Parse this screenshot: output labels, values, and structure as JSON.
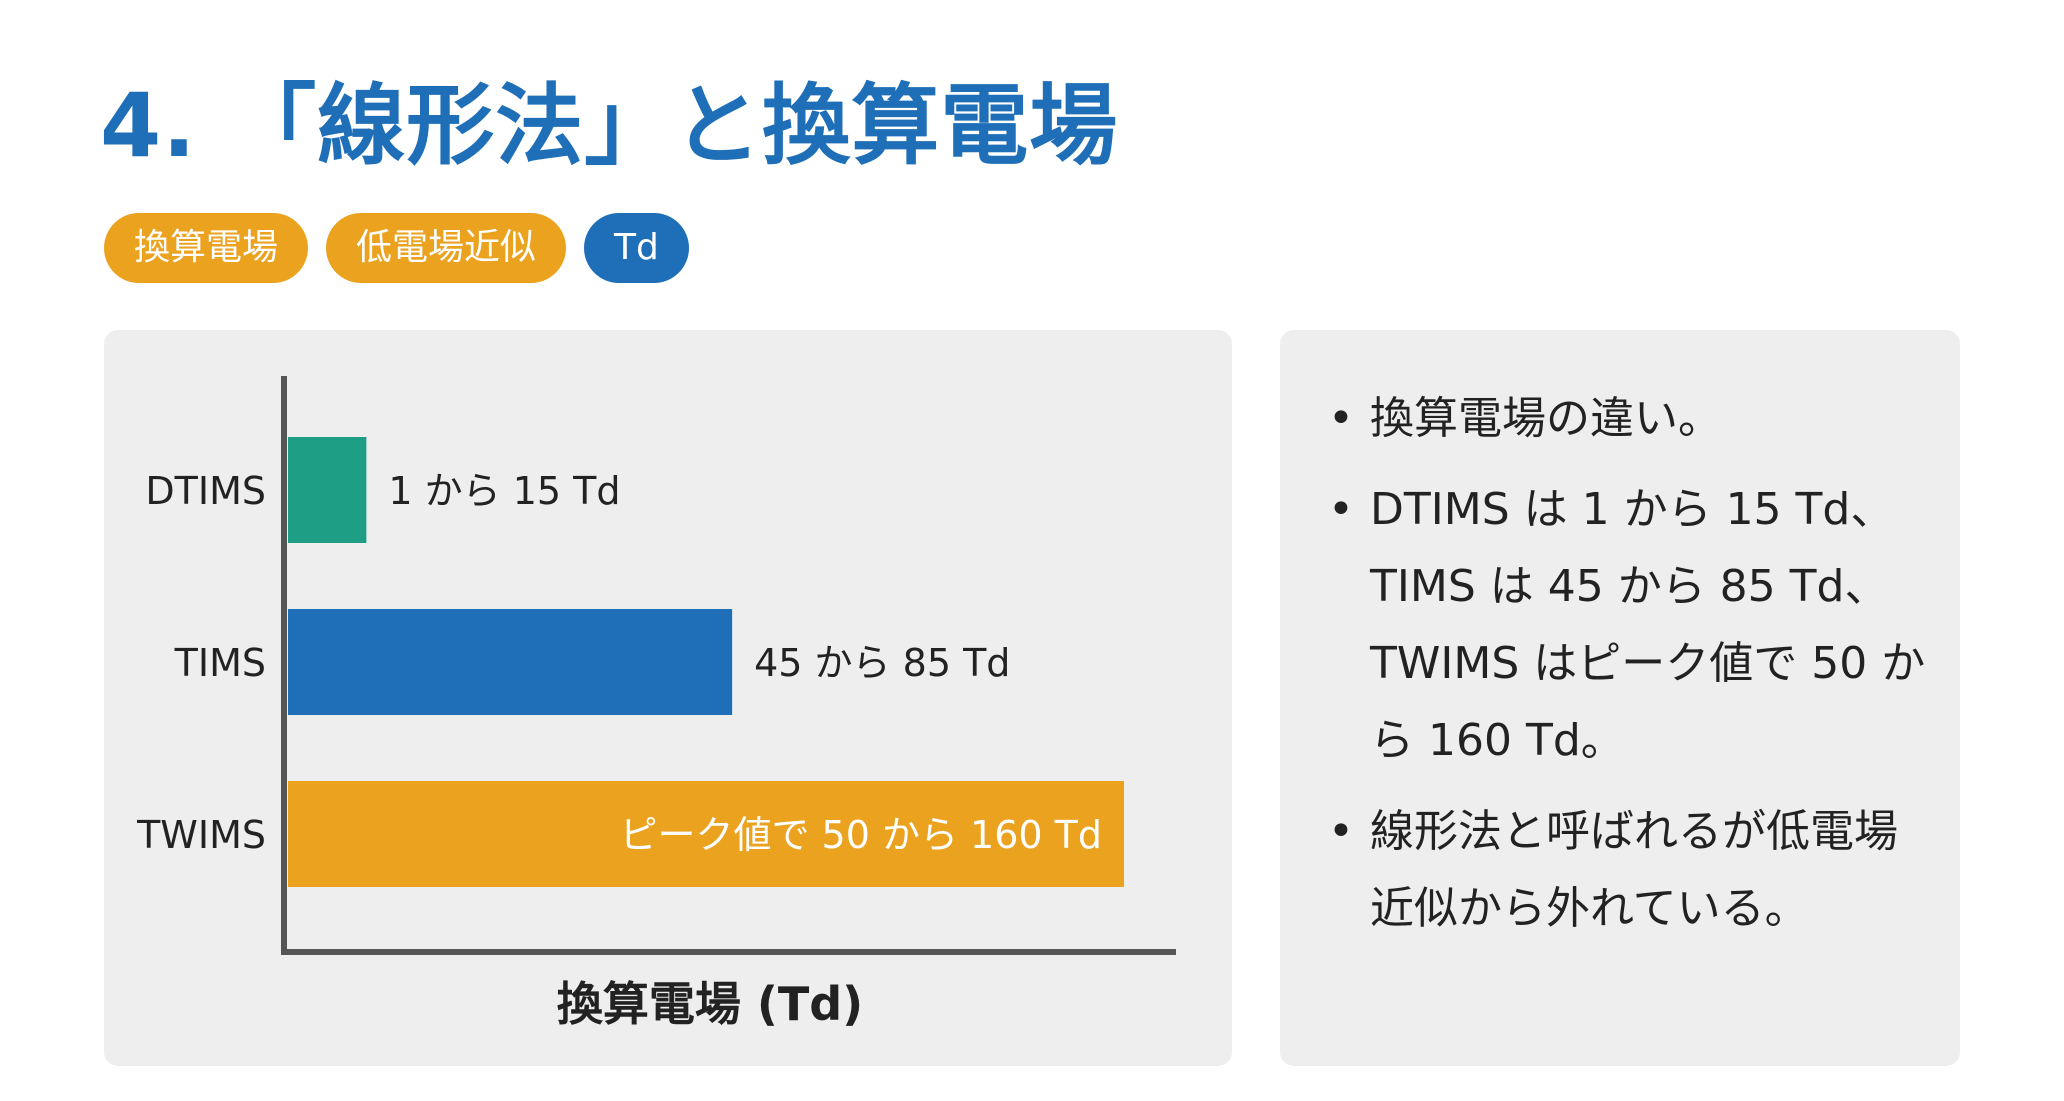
{
  "title": "4. 「線形法」と換算電場",
  "tags": [
    {
      "label": "換算電場",
      "color": "#eaa21f"
    },
    {
      "label": "低電場近似",
      "color": "#eaa21f"
    },
    {
      "label": "Td",
      "color": "#1f6fb8"
    }
  ],
  "chart_data": {
    "type": "bar",
    "orientation": "horizontal",
    "categories": [
      "DTIMS",
      "TIMS",
      "TWIMS"
    ],
    "ranges": [
      [
        1,
        15
      ],
      [
        45,
        85
      ],
      [
        50,
        160
      ]
    ],
    "bar_labels": [
      "1 から 15 Td",
      "45 から 85 Td",
      "ピーク値で 50 から 160 Td"
    ],
    "colors": [
      "#1f9e86",
      "#1f6fb8",
      "#eaa21f"
    ],
    "xlabel": "換算電場 (Td)",
    "ylabel": "",
    "grid": false
  },
  "bullets": [
    "換算電場の違い。",
    "DTIMS は 1 から 15 Td、TIMS は 45 から 85 Td、TWIMS はピーク値で 50 から 160 Td。",
    "線形法と呼ばれるが低電場近似から外れている。"
  ]
}
